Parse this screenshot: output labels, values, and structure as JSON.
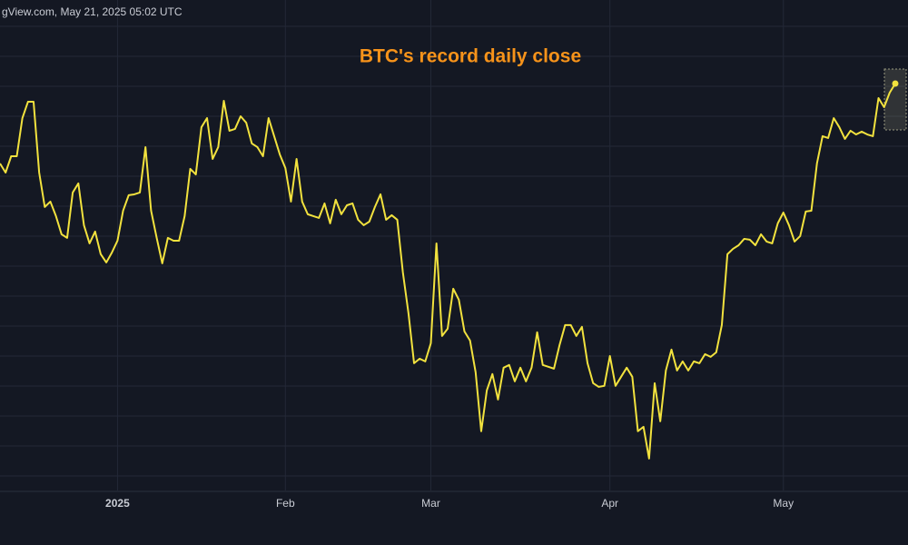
{
  "header": "gView.com, May 21, 2025 05:02 UTC",
  "chart_data": {
    "type": "line",
    "title": "BTC's record daily close",
    "color": "#f2e23e",
    "ylim": [
      73700,
      111750
    ],
    "grid": true,
    "categories": [
      null,
      null,
      null,
      null,
      null,
      null,
      null,
      null,
      null,
      null,
      null,
      null,
      null,
      null,
      null,
      null,
      null,
      null,
      null,
      null,
      null,
      "2025",
      null,
      null,
      null,
      null,
      null,
      null,
      null,
      null,
      null,
      null,
      null,
      null,
      null,
      null,
      null,
      null,
      null,
      null,
      null,
      null,
      null,
      null,
      null,
      null,
      null,
      null,
      null,
      null,
      null,
      "Feb",
      null,
      null,
      null,
      null,
      null,
      null,
      null,
      null,
      null,
      null,
      null,
      null,
      null,
      null,
      null,
      null,
      null,
      null,
      null,
      null,
      null,
      null,
      null,
      null,
      null,
      "Mar",
      null,
      null,
      null,
      null,
      null,
      null,
      null,
      null,
      null,
      null,
      null,
      null,
      null,
      null,
      null,
      null,
      null,
      null,
      null,
      null,
      null,
      null,
      null,
      null,
      null,
      null,
      null,
      null,
      null,
      null,
      null,
      "Apr",
      null,
      null,
      null,
      null,
      null,
      null,
      null,
      null,
      null,
      null,
      null,
      null,
      null,
      null,
      null,
      null,
      null,
      null,
      null,
      null,
      null,
      null,
      null,
      null,
      null,
      null,
      null,
      null,
      null,
      null,
      "May",
      null,
      null,
      null,
      null,
      null,
      null,
      null,
      null,
      null,
      null,
      null,
      null,
      null,
      null,
      null,
      null,
      null,
      null,
      null,
      null
    ],
    "values": [
      100300,
      99560,
      100890,
      100890,
      103990,
      105320,
      105320,
      99560,
      96760,
      97200,
      96020,
      94540,
      94250,
      97940,
      98680,
      95280,
      93800,
      94760,
      92920,
      92250,
      93060,
      94020,
      96460,
      97720,
      97790,
      97940,
      101630,
      96460,
      94250,
      92180,
      94250,
      94020,
      94020,
      96020,
      99860,
      99410,
      103250,
      103990,
      100670,
      101630,
      105400,
      102960,
      103110,
      104140,
      103620,
      101930,
      101630,
      100890,
      103990,
      102520,
      101040,
      99930,
      97200,
      100670,
      97200,
      96170,
      96020,
      95870,
      97050,
      95430,
      97350,
      96170,
      96900,
      97050,
      95720,
      95280,
      95570,
      96760,
      97790,
      95720,
      96090,
      95720,
      91440,
      88120,
      84050,
      84420,
      84200,
      85680,
      93800,
      86270,
      86860,
      90110,
      89220,
      86640,
      85900,
      83320,
      78520,
      81840,
      83170,
      81100,
      83690,
      83910,
      82580,
      83690,
      82580,
      83690,
      86570,
      83910,
      83760,
      83610,
      85530,
      87160,
      87160,
      86270,
      87010,
      84050,
      82430,
      82130,
      82210,
      84640,
      82210,
      82950,
      83690,
      82950,
      78520,
      78880,
      76300,
      82430,
      79330,
      83460,
      85160,
      83460,
      84200,
      83460,
      84200,
      84050,
      84790,
      84570,
      84940,
      87160,
      92920,
      93360,
      93650,
      94170,
      94100,
      93650,
      94540,
      93950,
      93800,
      95430,
      96310,
      95280,
      93950,
      94390,
      96390,
      96460,
      100300,
      102520,
      102370,
      103990,
      103250,
      102300,
      102960,
      102660,
      102890,
      102660,
      102520,
      105620,
      104880,
      106060,
      106800
    ]
  }
}
